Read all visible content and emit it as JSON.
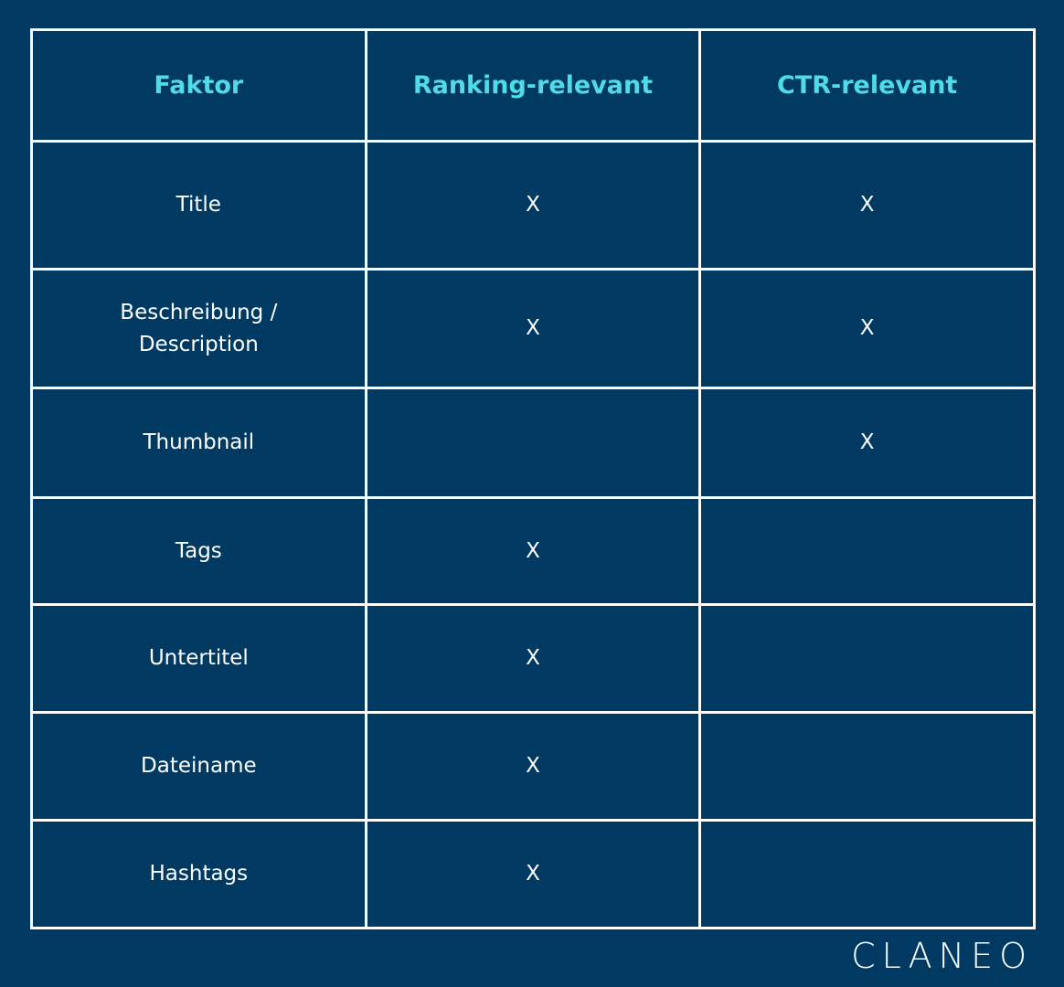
{
  "table": {
    "header": [
      "Faktor",
      "Ranking-relevant",
      "CTR-relevant"
    ],
    "rows": [
      [
        "Title",
        "X",
        "X"
      ],
      [
        "Beschreibung / Description",
        "X",
        "X"
      ],
      [
        "Thumbnail",
        null,
        "X"
      ],
      [
        "Tags",
        "X",
        null
      ],
      [
        "Untertitel",
        "X",
        null
      ],
      [
        "Dateiname",
        "X",
        null
      ],
      [
        "Hashtags",
        "X",
        null
      ]
    ]
  },
  "logo": "CLANEO"
}
